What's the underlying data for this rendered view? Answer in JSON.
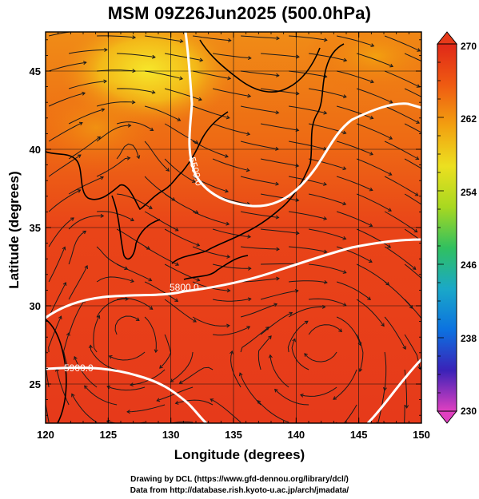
{
  "title": "MSM 09Z26Jun2025 (500.0hPa)",
  "x_axis": {
    "label": "Longitude (degrees)",
    "range": [
      120,
      150
    ],
    "ticks": [
      "120",
      "125",
      "130",
      "135",
      "140",
      "145",
      "150"
    ]
  },
  "y_axis": {
    "label": "Latitude  (degrees)",
    "range": [
      22.5,
      47.5
    ],
    "ticks": [
      "25",
      "30",
      "35",
      "40",
      "45"
    ]
  },
  "colorbar": {
    "range": [
      230,
      270
    ],
    "tick_labels": [
      "270",
      "262",
      "254",
      "246",
      "238",
      "230"
    ],
    "colors": [
      "#e040c0",
      "#3a22b8",
      "#0c72e0",
      "#1aa8c8",
      "#30c060",
      "#a8d820",
      "#ece020",
      "#f2a010",
      "#ef5a12",
      "#e02818"
    ]
  },
  "contours": [
    {
      "label": "5500.0"
    },
    {
      "label": "5800.0"
    },
    {
      "label": "5900.0"
    }
  ],
  "credits": {
    "line1": "Drawing by DCL (https://www.gfd-dennou.org/library/dcl/)",
    "line2": "Data from http://database.rish.kyoto-u.ac.jp/arch/jmadata/"
  }
}
